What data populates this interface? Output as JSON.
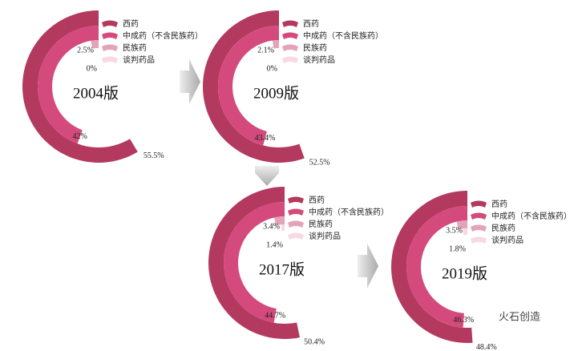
{
  "chart_data": [
    {
      "type": "radial-bar",
      "title": "2004版",
      "categories": [
        "西药",
        "中成药（不含民族药）",
        "民族药",
        "谈判药品"
      ],
      "colors": [
        "#b3395f",
        "#d44a7c",
        "#e3a3b8",
        "#f7d9e3"
      ],
      "values": [
        55.5,
        42,
        2.5,
        0
      ],
      "value_labels": [
        "55.5%",
        "42%",
        "2.5%",
        "0%"
      ]
    },
    {
      "type": "radial-bar",
      "title": "2009版",
      "categories": [
        "西药",
        "中成药（不含民族药）",
        "民族药",
        "谈判药品"
      ],
      "colors": [
        "#b3395f",
        "#d44a7c",
        "#e3a3b8",
        "#f7d9e3"
      ],
      "values": [
        52.5,
        43.4,
        2.1,
        0
      ],
      "value_labels": [
        "52.5%",
        "43.4%",
        "2.1%",
        "0%"
      ]
    },
    {
      "type": "radial-bar",
      "title": "2017版",
      "categories": [
        "西药",
        "中成药（不含民族药）",
        "民族药",
        "谈判药品"
      ],
      "colors": [
        "#b3395f",
        "#d44a7c",
        "#e3a3b8",
        "#f7d9e3"
      ],
      "values": [
        50.4,
        44.7,
        3.4,
        1.4
      ],
      "value_labels": [
        "50.4%",
        "44.7%",
        "3.4%",
        "1.4%"
      ]
    },
    {
      "type": "radial-bar",
      "title": "2019版",
      "categories": [
        "西药",
        "中成药（不含民族药）",
        "民族药",
        "谈判药品"
      ],
      "colors": [
        "#b3395f",
        "#d44a7c",
        "#e3a3b8",
        "#f7d9e3"
      ],
      "values": [
        48.4,
        46.3,
        3.5,
        1.8
      ],
      "value_labels": [
        "48.4%",
        "46.3%",
        "3.5%",
        "1.8%"
      ]
    }
  ],
  "watermark": "火石创造"
}
